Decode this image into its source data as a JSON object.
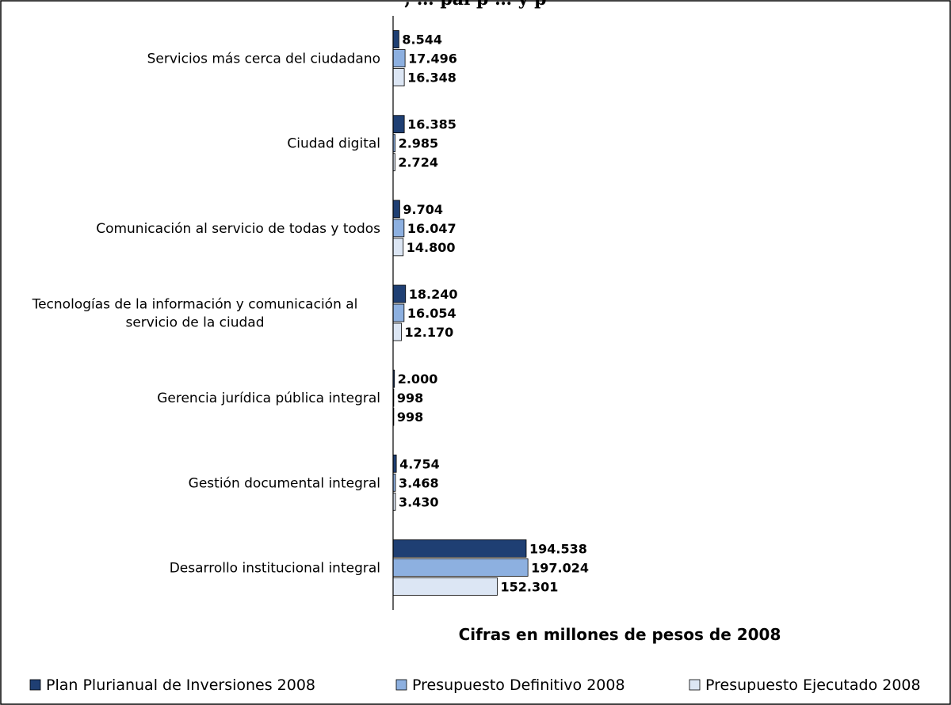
{
  "chart_data": {
    "type": "bar",
    "orientation": "horizontal",
    "title_fragment": ", …  pal p  …     y   p",
    "caption": "Cifras en millones de pesos de 2008",
    "categories": [
      "Servicios más cerca del ciudadano",
      "Ciudad digital",
      "Comunicación al servicio de todas y todos",
      "Tecnologías de la información y comunicación al servicio de la ciudad",
      "Gerencia jurídica pública integral",
      "Gestión documental integral",
      "Desarrollo institucional integral"
    ],
    "category_lines": [
      [
        "Servicios más cerca del ciudadano"
      ],
      [
        "Ciudad digital"
      ],
      [
        "Comunicación al servicio de todas y todos"
      ],
      [
        "Tecnologías de la información y comunicación al",
        "servicio de la ciudad"
      ],
      [
        "Gerencia jurídica pública integral"
      ],
      [
        "Gestión documental integral"
      ],
      [
        "Desarrollo institucional integral"
      ]
    ],
    "series": [
      {
        "name": "Plan Plurianual de Inversiones 2008",
        "color": "#1f3f73",
        "values": [
          8544,
          16385,
          9704,
          18240,
          2000,
          4754,
          194538
        ],
        "labels": [
          "8.544",
          "16.385",
          "9.704",
          "18.240",
          "2.000",
          "4.754",
          "194.538"
        ]
      },
      {
        "name": "Presupuesto Definitivo 2008",
        "color": "#8db0e0",
        "values": [
          17496,
          2985,
          16047,
          16054,
          998,
          3468,
          197024
        ],
        "labels": [
          "17.496",
          "2.985",
          "16.047",
          "16.054",
          "998",
          "3.468",
          "197.024"
        ]
      },
      {
        "name": "Presupuesto Ejecutado 2008",
        "color": "#dce6f4",
        "values": [
          16348,
          2724,
          14800,
          12170,
          998,
          3430,
          152301
        ],
        "labels": [
          "16.348",
          "2.724",
          "14.800",
          "12.170",
          "998",
          "3.430",
          "152.301"
        ]
      }
    ],
    "xlim": [
      0,
      200000
    ],
    "grid": false,
    "legend_position": "bottom"
  }
}
